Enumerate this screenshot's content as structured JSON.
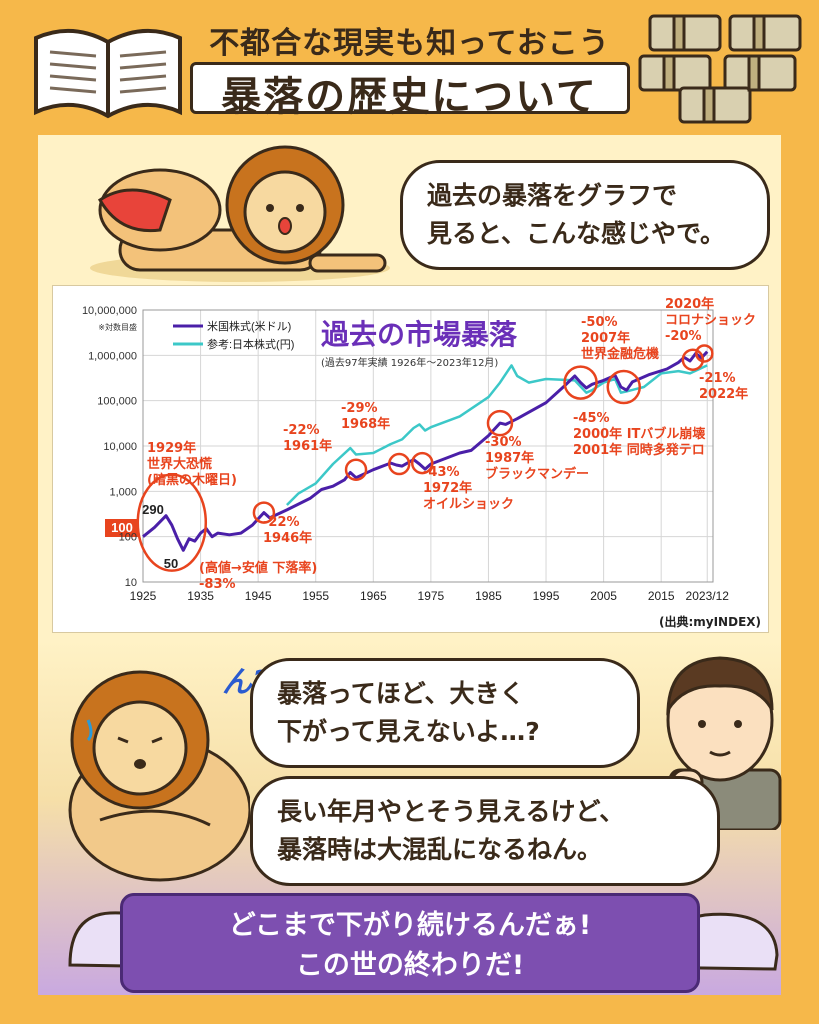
{
  "header": {
    "subtitle": "不都合な現実も知っておこう",
    "title": "暴落の歴史について"
  },
  "dialog": {
    "lion_top": [
      "過去の暴落をグラフで",
      "見ると、こんな感じやで。"
    ],
    "exclaim": "ん?",
    "man": [
      "暴落ってほど、大きく",
      "下がって見えないよ…?"
    ],
    "lion_bottom": [
      "長い年月やとそう見えるけど、",
      "暴落時は大混乱になるねん。"
    ],
    "banner": [
      "どこまで下がり続けるんだぁ!",
      "この世の終わりだ!"
    ]
  },
  "colors": {
    "background": "#f6b84a",
    "panel": "#fff2c6",
    "us_line": "#4a1fa8",
    "jp_line": "#3cc8c8",
    "event_red": "#e8441e",
    "banner": "#7d4fb0"
  },
  "chart_data": {
    "type": "line",
    "title": "過去の市場暴落",
    "subtitle": "(過去97年実績 1926年〜2023年12月)",
    "source": "(出典:myINDEX)",
    "scale_note": "※対数目盛",
    "y_scale": "log",
    "ylim": [
      10,
      10000000
    ],
    "xlim": [
      1925,
      2024
    ],
    "y_ticks": [
      "10,000,000",
      "1,000,000",
      "100,000",
      "10,000",
      "1,000",
      "100",
      "10"
    ],
    "x_ticks": [
      "1925",
      "1935",
      "1945",
      "1955",
      "1965",
      "1975",
      "1985",
      "1995",
      "2005",
      "2015",
      "2023/12"
    ],
    "grid": true,
    "legend_position": "top-left",
    "series": [
      {
        "name": "米国株式(米ドル)",
        "color": "#4a1fa8",
        "points": [
          [
            1925,
            100
          ],
          [
            1927,
            160
          ],
          [
            1929,
            290
          ],
          [
            1930,
            180
          ],
          [
            1931,
            90
          ],
          [
            1932,
            50
          ],
          [
            1933,
            90
          ],
          [
            1934,
            80
          ],
          [
            1935,
            120
          ],
          [
            1936,
            150
          ],
          [
            1937,
            100
          ],
          [
            1938,
            120
          ],
          [
            1940,
            110
          ],
          [
            1942,
            120
          ],
          [
            1944,
            180
          ],
          [
            1946,
            340
          ],
          [
            1947,
            260
          ],
          [
            1950,
            390
          ],
          [
            1954,
            700
          ],
          [
            1956,
            1100
          ],
          [
            1958,
            1300
          ],
          [
            1960,
            1800
          ],
          [
            1961,
            2600
          ],
          [
            1962,
            2000
          ],
          [
            1965,
            3000
          ],
          [
            1968,
            4200
          ],
          [
            1969,
            3800
          ],
          [
            1970,
            3600
          ],
          [
            1972,
            5000
          ],
          [
            1973,
            4000
          ],
          [
            1974,
            3100
          ],
          [
            1975,
            4000
          ],
          [
            1980,
            7000
          ],
          [
            1982,
            8000
          ],
          [
            1985,
            17000
          ],
          [
            1987,
            32000
          ],
          [
            1988,
            30000
          ],
          [
            1990,
            40000
          ],
          [
            1995,
            90000
          ],
          [
            1998,
            200000
          ],
          [
            2000,
            350000
          ],
          [
            2001,
            250000
          ],
          [
            2002,
            190000
          ],
          [
            2003,
            230000
          ],
          [
            2005,
            280000
          ],
          [
            2007,
            360000
          ],
          [
            2008,
            200000
          ],
          [
            2009,
            170000
          ],
          [
            2010,
            260000
          ],
          [
            2013,
            380000
          ],
          [
            2016,
            500000
          ],
          [
            2018,
            700000
          ],
          [
            2019,
            900000
          ],
          [
            2020,
            750000
          ],
          [
            2021,
            1100000
          ],
          [
            2022,
            880000
          ],
          [
            2023,
            1200000
          ]
        ]
      },
      {
        "name": "参考:日本株式(円)",
        "color": "#3cc8c8",
        "points": [
          [
            1950,
            500
          ],
          [
            1952,
            900
          ],
          [
            1955,
            1500
          ],
          [
            1958,
            4000
          ],
          [
            1961,
            9000
          ],
          [
            1962,
            6500
          ],
          [
            1965,
            7000
          ],
          [
            1968,
            11000
          ],
          [
            1970,
            14000
          ],
          [
            1972,
            25000
          ],
          [
            1973,
            30000
          ],
          [
            1974,
            22000
          ],
          [
            1975,
            26000
          ],
          [
            1980,
            45000
          ],
          [
            1985,
            120000
          ],
          [
            1987,
            250000
          ],
          [
            1989,
            600000
          ],
          [
            1990,
            350000
          ],
          [
            1992,
            250000
          ],
          [
            1995,
            300000
          ],
          [
            2000,
            280000
          ],
          [
            2002,
            150000
          ],
          [
            2003,
            170000
          ],
          [
            2005,
            250000
          ],
          [
            2007,
            300000
          ],
          [
            2008,
            150000
          ],
          [
            2009,
            160000
          ],
          [
            2012,
            200000
          ],
          [
            2015,
            400000
          ],
          [
            2018,
            450000
          ],
          [
            2020,
            400000
          ],
          [
            2023,
            600000
          ]
        ]
      }
    ],
    "annotations": [
      {
        "year": 1930,
        "value": 100,
        "lines": [
          "1929年",
          "世界大恐慌",
          "(暗黒の木曜日)"
        ]
      },
      {
        "label": "290"
      },
      {
        "label": "50"
      },
      {
        "label": "100"
      },
      {
        "lines": [
          "(高値→安値 下落率)",
          "-83%"
        ]
      },
      {
        "year": 1946,
        "value": 340,
        "lines": [
          "-22%",
          "1946年"
        ]
      },
      {
        "year": 1962,
        "value": 3000,
        "lines": [
          "-22%",
          "1961年"
        ]
      },
      {
        "year": 1969,
        "value": 4000,
        "lines": [
          "-29%",
          "1968年"
        ]
      },
      {
        "year": 1973,
        "value": 4200,
        "lines": [
          "-43%",
          "1972年",
          "オイルショック"
        ]
      },
      {
        "year": 1987,
        "value": 32000,
        "lines": [
          "-30%",
          "1987年",
          "ブラックマンデー"
        ]
      },
      {
        "year": 2001,
        "value": 250000,
        "lines": [
          "-45%",
          "2000年 ITバブル崩壊",
          "2001年 同時多発テロ"
        ]
      },
      {
        "year": 2008,
        "value": 200000,
        "lines": [
          "-50%",
          "2007年",
          "世界金融危機"
        ]
      },
      {
        "year": 2020,
        "value": 800000,
        "lines": [
          "2020年",
          "コロナショック",
          "-20%"
        ]
      },
      {
        "year": 2022,
        "value": 1100000,
        "lines": [
          "-21%",
          "2022年"
        ]
      }
    ]
  }
}
